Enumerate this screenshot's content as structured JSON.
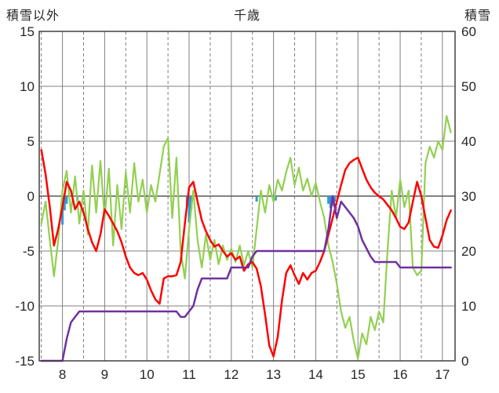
{
  "header": {
    "left_axis_title": "積雪以外",
    "chart_title": "千歳",
    "right_axis_title": "積雪"
  },
  "chart_data": {
    "type": "line",
    "title": "千歳",
    "left_axis_label": "積雪以外",
    "right_axis_label": "積雪",
    "x_range": [
      7.45,
      17.3
    ],
    "x_ticks": [
      8,
      9,
      10,
      11,
      12,
      13,
      14,
      15,
      16,
      17
    ],
    "x_minor_ticks": [
      7.5,
      8.5,
      9.5,
      10.5,
      11.5,
      12.5,
      13.5,
      14.5,
      15.5,
      16.5
    ],
    "left_range": [
      -15,
      15
    ],
    "left_ticks": [
      15,
      10,
      5,
      0,
      -5,
      -10,
      -15
    ],
    "right_range": [
      0,
      60
    ],
    "right_ticks": [
      60,
      50,
      40,
      30,
      20,
      10,
      0
    ],
    "grid_color": "#808080",
    "zero_line_color": "#595959",
    "border_color": "#404040",
    "text_color": "#262626",
    "x_start": 7.5,
    "x_step": 0.1,
    "series": [
      {
        "name": "blue-bars",
        "type": "bar",
        "axis": "left",
        "color": "#2E9BD6",
        "points": [
          [
            8.0,
            -2.6
          ],
          [
            8.05,
            -1.3
          ],
          [
            8.1,
            -0.7
          ],
          [
            8.35,
            -0.4
          ],
          [
            10.95,
            -0.8
          ],
          [
            11.0,
            -2.4
          ],
          [
            11.05,
            -1.2
          ],
          [
            12.6,
            -0.5
          ],
          [
            13.05,
            -0.4
          ],
          [
            14.3,
            -0.7
          ],
          [
            14.35,
            -1.1
          ],
          [
            14.4,
            -0.9
          ],
          [
            14.45,
            -0.5
          ]
        ]
      },
      {
        "name": "green-line",
        "type": "line",
        "axis": "left",
        "color": "#92D050",
        "width": 2.2,
        "values": [
          -2.5,
          -0.5,
          -4.0,
          -7.3,
          -4.0,
          0.5,
          2.3,
          -1.5,
          1.8,
          -2.5,
          0.5,
          -3.5,
          2.8,
          -1.5,
          3.2,
          -2.0,
          2.5,
          -4.5,
          1.0,
          -3.0,
          2.2,
          -1.5,
          3.0,
          -0.5,
          1.5,
          -1.5,
          1.0,
          -0.5,
          2.0,
          4.5,
          5.3,
          -2.0,
          3.5,
          -5.0,
          -7.5,
          -3.0,
          0.5,
          -4.0,
          -6.5,
          -3.5,
          -5.8,
          -4.0,
          -6.2,
          -4.5,
          -5.8,
          -4.8,
          -6.0,
          -4.5,
          -6.3,
          -5.0,
          -6.5,
          -3.0,
          0.5,
          -1.5,
          1.0,
          -0.5,
          1.5,
          0.5,
          2.2,
          3.5,
          1.0,
          2.6,
          0.5,
          1.6,
          0.0,
          1.2,
          -0.5,
          -2.0,
          -4.5,
          -6.0,
          -8.0,
          -10.5,
          -12.0,
          -11.0,
          -13.2,
          -14.8,
          -12.5,
          -13.5,
          -11.0,
          -12.2,
          -10.5,
          -11.5,
          -5.0,
          0.5,
          -2.0,
          1.5,
          -1.0,
          0.5,
          -6.5,
          -7.2,
          -6.8,
          3.0,
          4.5,
          3.5,
          5.0,
          4.2,
          7.3,
          5.8
        ]
      },
      {
        "name": "red-line",
        "type": "line",
        "axis": "left",
        "color": "#FF0000",
        "width": 2.5,
        "values": [
          4.2,
          2.0,
          -1.0,
          -4.5,
          -3.0,
          -1.0,
          1.3,
          0.5,
          -1.2,
          -0.5,
          -1.5,
          -3.0,
          -4.2,
          -5.0,
          -3.5,
          -1.2,
          -1.8,
          -2.5,
          -3.2,
          -4.2,
          -5.5,
          -6.5,
          -7.0,
          -7.2,
          -7.0,
          -7.6,
          -8.6,
          -9.4,
          -9.8,
          -7.5,
          -7.3,
          -7.3,
          -7.2,
          -6.0,
          -2.5,
          0.8,
          1.3,
          -0.5,
          -2.2,
          -3.2,
          -4.0,
          -4.6,
          -4.4,
          -5.0,
          -5.5,
          -5.2,
          -5.8,
          -5.5,
          -6.8,
          -6.2,
          -6.0,
          -6.6,
          -8.2,
          -10.8,
          -13.6,
          -14.6,
          -12.8,
          -9.5,
          -7.0,
          -6.3,
          -7.2,
          -8.0,
          -7.0,
          -7.6,
          -7.0,
          -6.8,
          -6.0,
          -5.0,
          -3.5,
          -2.0,
          -0.5,
          1.0,
          2.4,
          3.0,
          3.3,
          3.5,
          2.5,
          1.5,
          0.8,
          0.3,
          0.0,
          -0.3,
          -0.8,
          -1.3,
          -2.0,
          -2.8,
          -3.0,
          -2.4,
          -0.5,
          1.3,
          0.0,
          -2.0,
          -4.0,
          -4.6,
          -4.7,
          -3.6,
          -2.2,
          -1.3
        ]
      },
      {
        "name": "purple-snow-depth-line",
        "type": "line",
        "axis": "right",
        "color": "#7030A0",
        "width": 2.5,
        "values": [
          0,
          0,
          0,
          0,
          0,
          0,
          4,
          7,
          8,
          9,
          9,
          9,
          9,
          9,
          9,
          9,
          9,
          9,
          9,
          9,
          9,
          9,
          9,
          9,
          9,
          9,
          9,
          9,
          9,
          9,
          9,
          9,
          9,
          8,
          8,
          9,
          10,
          13,
          15,
          15,
          15,
          15,
          15,
          15,
          15,
          17,
          17,
          17,
          17,
          17,
          19,
          20,
          20,
          20,
          20,
          20,
          20,
          20,
          20,
          20,
          20,
          20,
          20,
          20,
          20,
          20,
          20,
          20,
          24,
          30,
          26,
          29,
          28,
          27,
          26,
          24.5,
          22,
          20.5,
          19,
          18,
          18,
          18,
          18,
          18,
          18,
          17,
          17,
          17,
          17,
          17,
          17,
          17,
          17,
          17,
          17,
          17,
          17,
          17
        ]
      }
    ]
  }
}
